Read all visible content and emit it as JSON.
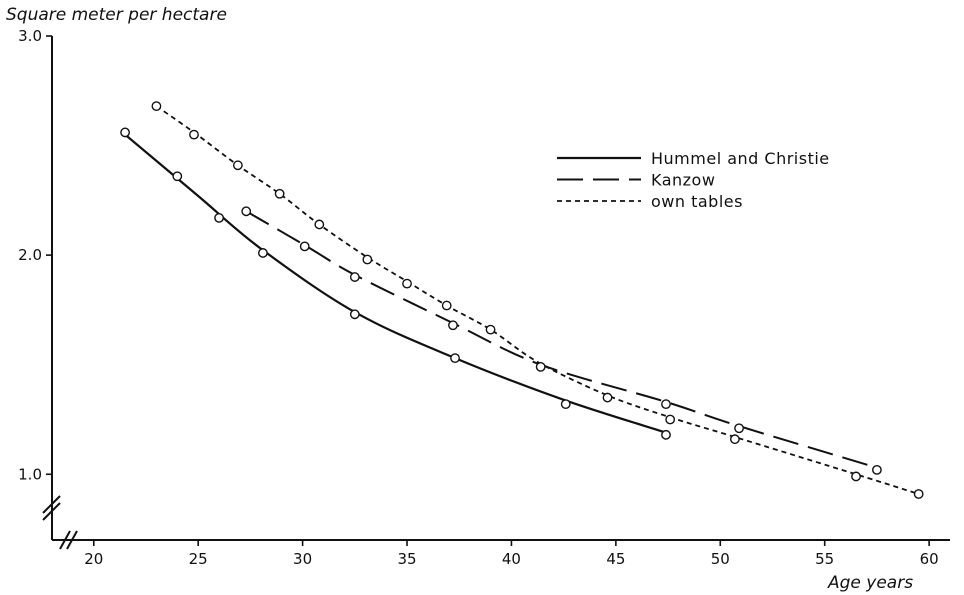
{
  "chart_data": {
    "type": "line",
    "ylabel": "Square meter per hectare",
    "xlabel": "Age years",
    "xlim": [
      18,
      61
    ],
    "ylim": [
      0.7,
      3.0
    ],
    "x_ticks": [
      20,
      25,
      30,
      35,
      40,
      45,
      50,
      55,
      60
    ],
    "x_tick_labels": [
      "20",
      "25",
      "30",
      "35",
      "40",
      "45",
      "50",
      "55",
      "60"
    ],
    "y_ticks": [
      1.0,
      2.0,
      3.0
    ],
    "y_tick_labels": [
      "1.0",
      "2.0",
      "3.0"
    ],
    "axis_breaks": true,
    "grid": false,
    "legend_position": "top-right",
    "series": [
      {
        "name": "Hummel and Christie",
        "style": "solid",
        "curve": [
          [
            21.5,
            2.55
          ],
          [
            25,
            2.27
          ],
          [
            28,
            2.03
          ],
          [
            32.5,
            1.74
          ],
          [
            37.3,
            1.53
          ],
          [
            42.5,
            1.34
          ],
          [
            47.4,
            1.19
          ]
        ],
        "points": [
          [
            21.5,
            2.56
          ],
          [
            24,
            2.36
          ],
          [
            26,
            2.17
          ],
          [
            28.1,
            2.01
          ],
          [
            32.5,
            1.73
          ],
          [
            37.3,
            1.53
          ],
          [
            42.6,
            1.32
          ],
          [
            47.4,
            1.18
          ]
        ]
      },
      {
        "name": "Kanzow",
        "style": "dashed",
        "curve": [
          [
            27.3,
            2.2
          ],
          [
            30.2,
            2.04
          ],
          [
            32.5,
            1.91
          ],
          [
            37.2,
            1.69
          ],
          [
            41.4,
            1.5
          ],
          [
            47.4,
            1.33
          ],
          [
            50.9,
            1.22
          ],
          [
            57.5,
            1.03
          ]
        ],
        "points": [
          [
            27.3,
            2.2
          ],
          [
            30.1,
            2.04
          ],
          [
            32.5,
            1.9
          ],
          [
            37.2,
            1.68
          ],
          [
            41.4,
            1.49
          ],
          [
            47.4,
            1.32
          ],
          [
            50.9,
            1.21
          ],
          [
            57.5,
            1.02
          ]
        ]
      },
      {
        "name": "own tables",
        "style": "dotted",
        "curve": [
          [
            23,
            2.68
          ],
          [
            24.8,
            2.56
          ],
          [
            26.9,
            2.41
          ],
          [
            28.9,
            2.28
          ],
          [
            30.8,
            2.14
          ],
          [
            33.1,
            1.99
          ],
          [
            35,
            1.88
          ],
          [
            36.9,
            1.77
          ],
          [
            39,
            1.66
          ],
          [
            41.3,
            1.51
          ],
          [
            44.6,
            1.36
          ],
          [
            47.6,
            1.26
          ],
          [
            50.7,
            1.17
          ],
          [
            56.5,
            1.0
          ],
          [
            59.5,
            0.91
          ]
        ],
        "points": [
          [
            23,
            2.68
          ],
          [
            24.8,
            2.55
          ],
          [
            26.9,
            2.41
          ],
          [
            28.9,
            2.28
          ],
          [
            30.8,
            2.14
          ],
          [
            33.1,
            1.98
          ],
          [
            35,
            1.87
          ],
          [
            36.9,
            1.77
          ],
          [
            39,
            1.66
          ],
          [
            44.6,
            1.35
          ],
          [
            47.6,
            1.25
          ],
          [
            50.7,
            1.16
          ],
          [
            56.5,
            0.99
          ],
          [
            59.5,
            0.91
          ]
        ]
      }
    ]
  }
}
